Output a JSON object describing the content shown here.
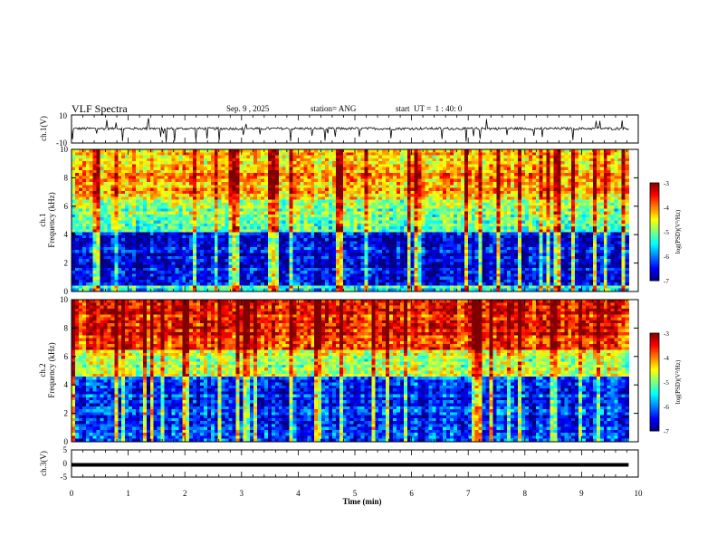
{
  "header": {
    "title": "VLF Spectra",
    "date": "Sep. 9 , 2025",
    "station": "station= ANG",
    "start": "start  UT =  1 : 40: 0"
  },
  "chart_data": [
    {
      "type": "line",
      "panel": "ch1-waveform",
      "ylabel": "ch.1(V)",
      "ylim": [
        -10,
        10
      ],
      "yticks": [
        "10",
        "-10"
      ],
      "baseline": 0.3,
      "description_values": "noisy waveform around 0 V with spikes up to about +/-10 V"
    },
    {
      "type": "heatmap",
      "panel": "ch1-spectrogram",
      "ylabel_line1": "ch.1",
      "ylabel_line2": "Frequency  (kHz)",
      "ylim": [
        0,
        10
      ],
      "yticks": [
        "0",
        "2",
        "4",
        "6",
        "8",
        "10"
      ],
      "colorbar": {
        "label": "log(PSD)(V²/Hz)",
        "min": -7,
        "max": -3,
        "ticks": [
          "-3",
          "-4",
          "-5",
          "-6",
          "-7"
        ]
      },
      "bands": [
        {
          "from_khz": 0,
          "to_khz": 0.5,
          "level": -5.5
        },
        {
          "from_khz": 0.5,
          "to_khz": 4.1,
          "level": -6.6
        },
        {
          "from_khz": 4.1,
          "to_khz": 6.5,
          "level": -5.0
        },
        {
          "from_khz": 6.5,
          "to_khz": 10,
          "level": -4.2
        }
      ]
    },
    {
      "type": "heatmap",
      "panel": "ch2-spectrogram",
      "ylabel_line1": "ch.2",
      "ylabel_line2": "Frequency  (kHz)",
      "ylim": [
        0,
        10
      ],
      "yticks": [
        "0",
        "2",
        "4",
        "6",
        "8",
        "10"
      ],
      "colorbar": {
        "label": "log(PSD)(V²/Hz)",
        "min": -7,
        "max": -3,
        "ticks": [
          "-3",
          "-4",
          "-5",
          "-6",
          "-7"
        ]
      },
      "bands": [
        {
          "from_khz": 0,
          "to_khz": 0.5,
          "level": -6.2
        },
        {
          "from_khz": 0.5,
          "to_khz": 4.5,
          "level": -6.4
        },
        {
          "from_khz": 4.5,
          "to_khz": 6.5,
          "level": -4.8
        },
        {
          "from_khz": 6.5,
          "to_khz": 10,
          "level": -3.6
        }
      ]
    },
    {
      "type": "line",
      "panel": "ch3-waveform",
      "ylabel": "ch.3(V)",
      "ylim": [
        -5,
        5
      ],
      "yticks": [
        "5",
        "0",
        "-5"
      ],
      "baseline": -0.5
    }
  ],
  "xaxis": {
    "label": "Time  (min)",
    "xlim": [
      0,
      10
    ],
    "data_end": 9.83,
    "ticks": [
      "0",
      "1",
      "2",
      "3",
      "4",
      "5",
      "6",
      "7",
      "8",
      "9",
      "10"
    ]
  },
  "colors": {
    "scale": [
      "#00007f",
      "#0000ff",
      "#0080ff",
      "#00ffff",
      "#80ff80",
      "#ffff00",
      "#ff8000",
      "#ff0000",
      "#7f0000"
    ]
  }
}
